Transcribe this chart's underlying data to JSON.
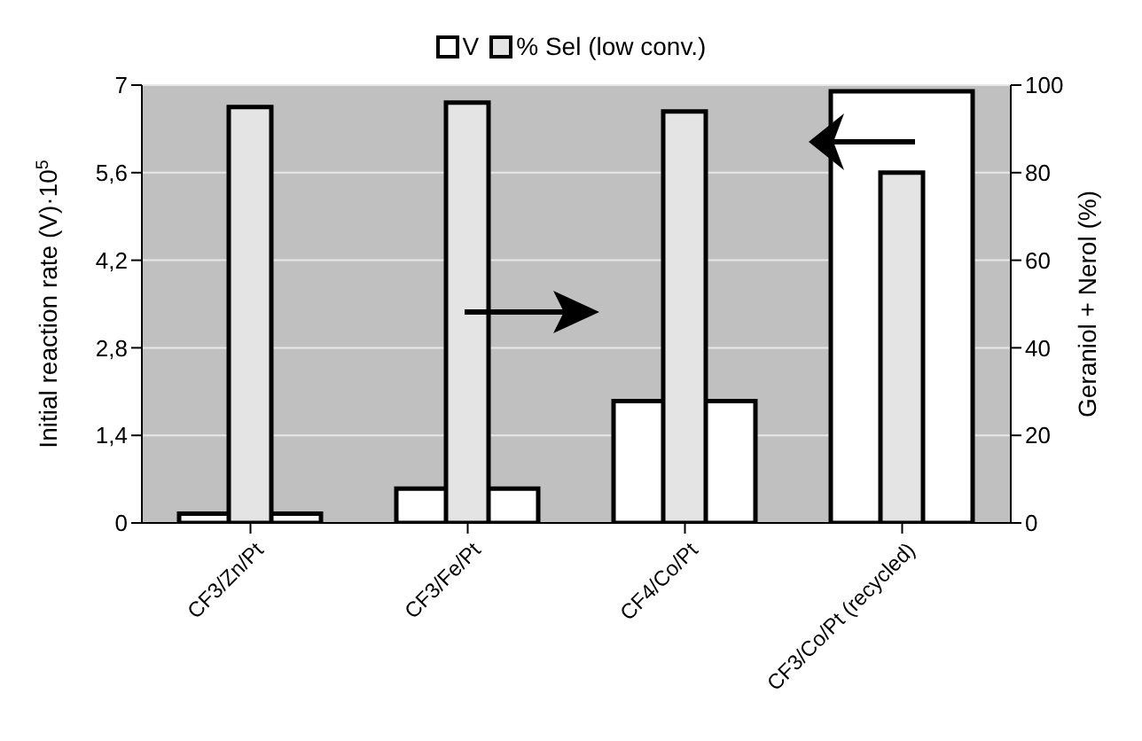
{
  "chart_data": {
    "type": "bar",
    "categories": [
      "CF3/Zn/Pt",
      "CF3/Fe/Pt",
      "CF4/Co/Pt",
      "CF3/Co/Pt (recycled)"
    ],
    "ylabel": "Initial reaction rate (V)·10$^{5}$",
    "y2label": "Geraniol + Nerol (%)",
    "series": [
      {
        "name": "V",
        "color": "#ffffff",
        "values": [
          0.15,
          0.55,
          1.95,
          6.9
        ]
      },
      {
        "name": "% Sel (low conv.)",
        "color": "#e4e4e4",
        "axis": "y2",
        "values": [
          95,
          96,
          94,
          80
        ]
      }
    ],
    "ylim": [
      0,
      7
    ],
    "yticks": [
      0,
      {
        "value": 1.4,
        "label": "1,4"
      },
      {
        "value": 2.8,
        "label": "2,8"
      },
      {
        "value": 4.2,
        "label": "4,2"
      },
      {
        "value": 5.6,
        "label": "5,6"
      },
      7
    ],
    "y2lim": [
      0,
      100
    ],
    "y2ticks": [
      0,
      20,
      40,
      60,
      80,
      100
    ],
    "grid": "y",
    "legend": "top"
  }
}
